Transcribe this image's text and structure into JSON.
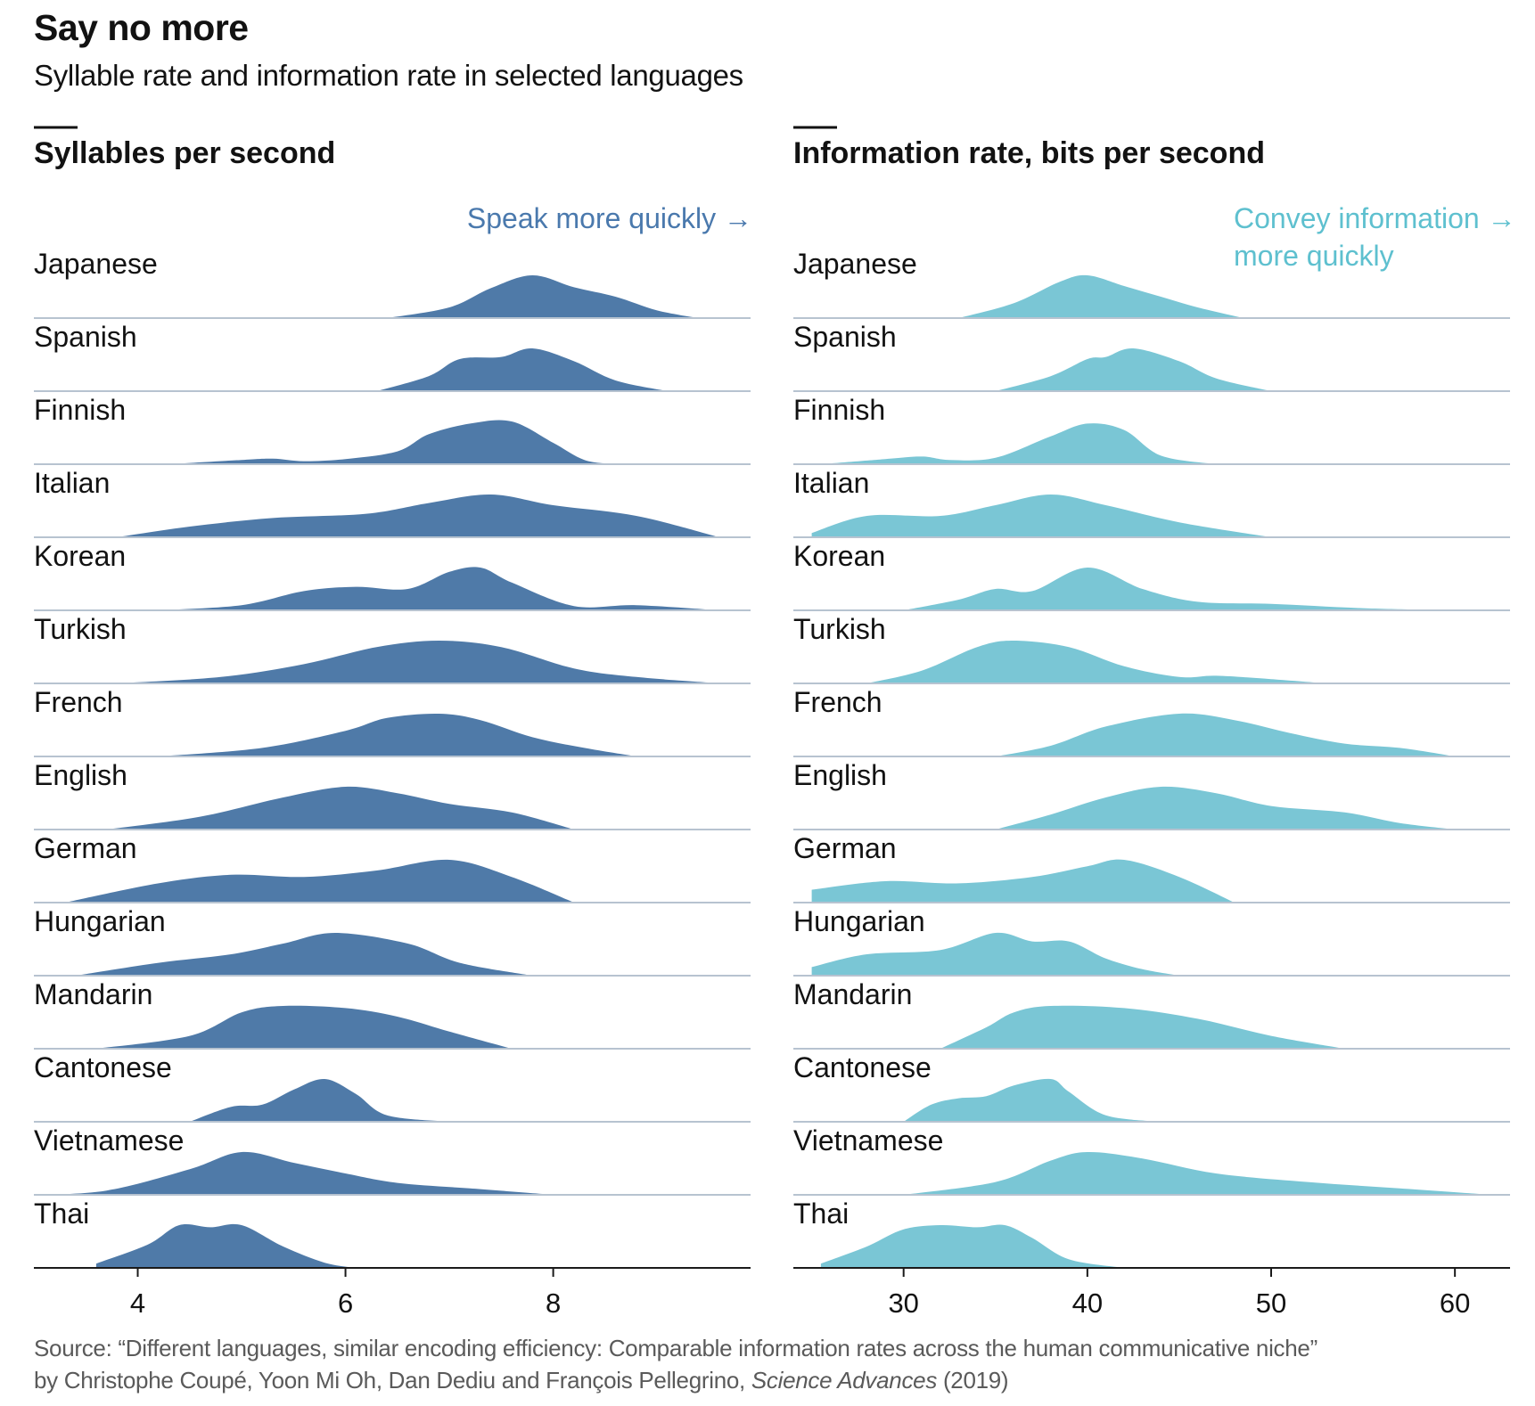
{
  "title": "Say no more",
  "subtitle": "Syllable rate and information rate in selected languages",
  "source": {
    "line1": "Source: “Different languages, similar encoding efficiency: Comparable information rates across the human communicative niche”",
    "line2_prefix": "by Christophe Coupé, Yoon Mi Oh, Dan Dediu and François Pellegrino, ",
    "journal": "Science Advances",
    "line2_suffix": " (2019)"
  },
  "colors": {
    "syllable_fill": "#4f7aa8",
    "info_fill": "#7ac6d5",
    "syllable_note": "#4a79ad",
    "info_note": "#5ec0cf",
    "baseline": "#b7c3d0",
    "axis": "#1a1a1a"
  },
  "languages": [
    "Japanese",
    "Spanish",
    "Finnish",
    "Italian",
    "Korean",
    "Turkish",
    "French",
    "English",
    "German",
    "Hungarian",
    "Mandarin",
    "Cantonese",
    "Vietnamese",
    "Thai"
  ],
  "chart_data": [
    {
      "type": "area",
      "subtype": "ridgeline density",
      "title": "Syllables per second",
      "annotation": "Speak more quickly →",
      "xlim": [
        3.0,
        9.9
      ],
      "xticks": [
        4,
        6,
        8
      ],
      "series": [
        {
          "name": "Japanese",
          "x": [
            6.4,
            7.0,
            7.4,
            7.8,
            8.2,
            8.6,
            9.0,
            9.4
          ],
          "density": [
            0.0,
            0.25,
            0.7,
            1.0,
            0.72,
            0.5,
            0.18,
            0.0
          ]
        },
        {
          "name": "Spanish",
          "x": [
            6.3,
            6.8,
            7.1,
            7.5,
            7.8,
            8.2,
            8.6,
            9.1
          ],
          "density": [
            0.0,
            0.35,
            0.75,
            0.8,
            1.0,
            0.7,
            0.25,
            0.0
          ]
        },
        {
          "name": "Finnish",
          "x": [
            4.3,
            5.0,
            5.3,
            5.6,
            6.0,
            6.5,
            6.8,
            7.2,
            7.6,
            8.0,
            8.3,
            8.6
          ],
          "density": [
            0.0,
            0.1,
            0.13,
            0.07,
            0.12,
            0.3,
            0.7,
            0.95,
            1.0,
            0.5,
            0.1,
            0.0
          ]
        },
        {
          "name": "Italian",
          "x": [
            3.8,
            4.5,
            5.3,
            6.2,
            6.8,
            7.4,
            8.0,
            8.8,
            9.6
          ],
          "density": [
            0.0,
            0.25,
            0.45,
            0.55,
            0.8,
            1.0,
            0.75,
            0.5,
            0.0
          ]
        },
        {
          "name": "Korean",
          "x": [
            4.2,
            5.0,
            5.6,
            6.1,
            6.6,
            7.0,
            7.3,
            7.6,
            8.2,
            8.8,
            9.6
          ],
          "density": [
            0.0,
            0.12,
            0.45,
            0.55,
            0.5,
            0.9,
            1.0,
            0.65,
            0.1,
            0.12,
            0.0
          ]
        },
        {
          "name": "Turkish",
          "x": [
            3.8,
            4.8,
            5.6,
            6.3,
            6.9,
            7.5,
            8.2,
            8.8,
            9.6
          ],
          "density": [
            0.0,
            0.15,
            0.45,
            0.85,
            1.0,
            0.85,
            0.35,
            0.15,
            0.0
          ]
        },
        {
          "name": "French",
          "x": [
            4.2,
            5.2,
            6.0,
            6.4,
            6.9,
            7.3,
            7.8,
            8.3,
            8.8
          ],
          "density": [
            0.0,
            0.2,
            0.6,
            0.9,
            1.0,
            0.85,
            0.45,
            0.2,
            0.0
          ]
        },
        {
          "name": "English",
          "x": [
            3.7,
            4.6,
            5.4,
            6.0,
            6.5,
            7.0,
            7.6,
            8.2
          ],
          "density": [
            0.0,
            0.3,
            0.75,
            1.0,
            0.85,
            0.6,
            0.4,
            0.0
          ]
        },
        {
          "name": "German",
          "x": [
            3.3,
            4.2,
            4.9,
            5.6,
            6.3,
            7.0,
            7.6,
            8.2
          ],
          "density": [
            0.0,
            0.45,
            0.65,
            0.6,
            0.75,
            1.0,
            0.6,
            0.0
          ]
        },
        {
          "name": "Hungarian",
          "x": [
            3.4,
            4.2,
            4.9,
            5.4,
            5.9,
            6.6,
            7.1,
            7.8
          ],
          "density": [
            0.0,
            0.3,
            0.5,
            0.75,
            1.0,
            0.75,
            0.3,
            0.0
          ]
        },
        {
          "name": "Mandarin",
          "x": [
            3.6,
            4.5,
            5.0,
            5.4,
            6.0,
            6.5,
            7.0,
            7.6
          ],
          "density": [
            0.0,
            0.3,
            0.85,
            1.0,
            0.95,
            0.75,
            0.4,
            0.0
          ]
        },
        {
          "name": "Cantonese",
          "x": [
            4.5,
            4.9,
            5.2,
            5.5,
            5.8,
            6.1,
            6.4,
            7.0
          ],
          "density": [
            0.0,
            0.35,
            0.4,
            0.75,
            1.0,
            0.65,
            0.15,
            0.0
          ]
        },
        {
          "name": "Vietnamese",
          "x": [
            3.0,
            3.7,
            4.5,
            5.0,
            5.5,
            6.0,
            6.5,
            7.2,
            8.0
          ],
          "density": [
            0.0,
            0.1,
            0.6,
            1.0,
            0.75,
            0.5,
            0.28,
            0.15,
            0.0
          ]
        },
        {
          "name": "Thai",
          "x": [
            3.6,
            4.1,
            4.4,
            4.7,
            5.0,
            5.4,
            5.8,
            6.1
          ],
          "density": [
            0.1,
            0.55,
            1.0,
            0.95,
            1.0,
            0.5,
            0.12,
            0.0
          ]
        }
      ]
    },
    {
      "type": "area",
      "subtype": "ridgeline density",
      "title": "Information rate, bits per second",
      "annotation": [
        "Convey information →",
        "more quickly"
      ],
      "xlim": [
        24.0,
        63.0
      ],
      "xticks": [
        30,
        40,
        50,
        60
      ],
      "series": [
        {
          "name": "Japanese",
          "x": [
            33.0,
            36.0,
            38.5,
            40.0,
            42.0,
            44.0,
            46.0,
            48.5
          ],
          "density": [
            0.0,
            0.35,
            0.85,
            1.0,
            0.75,
            0.5,
            0.25,
            0.0
          ]
        },
        {
          "name": "Spanish",
          "x": [
            35.0,
            38.0,
            40.0,
            41.0,
            42.5,
            45.0,
            47.0,
            50.0
          ],
          "density": [
            0.0,
            0.35,
            0.75,
            0.8,
            1.0,
            0.7,
            0.3,
            0.0
          ]
        },
        {
          "name": "Finnish",
          "x": [
            25.5,
            29.0,
            31.0,
            32.5,
            35.0,
            38.0,
            40.0,
            42.0,
            44.0,
            47.0
          ],
          "density": [
            0.0,
            0.12,
            0.18,
            0.1,
            0.15,
            0.65,
            0.95,
            0.8,
            0.2,
            0.0
          ]
        },
        {
          "name": "Italian",
          "x": [
            25.0,
            28.0,
            32.0,
            35.0,
            38.0,
            41.0,
            45.0,
            50.0
          ],
          "density": [
            0.1,
            0.5,
            0.5,
            0.75,
            1.0,
            0.75,
            0.35,
            0.0
          ]
        },
        {
          "name": "Korean",
          "x": [
            30.0,
            33.0,
            35.0,
            37.0,
            40.0,
            43.0,
            46.0,
            50.0,
            55.0,
            60.0
          ],
          "density": [
            0.0,
            0.25,
            0.5,
            0.45,
            1.0,
            0.5,
            0.2,
            0.15,
            0.05,
            0.0
          ]
        },
        {
          "name": "Turkish",
          "x": [
            28.0,
            31.0,
            34.0,
            36.0,
            39.0,
            42.0,
            45.0,
            47.0,
            50.0,
            53.0
          ],
          "density": [
            0.0,
            0.3,
            0.85,
            1.0,
            0.85,
            0.4,
            0.15,
            0.18,
            0.1,
            0.0
          ]
        },
        {
          "name": "French",
          "x": [
            35.0,
            38.0,
            41.0,
            45.0,
            48.0,
            51.0,
            54.0,
            57.0,
            60.0
          ],
          "density": [
            0.0,
            0.25,
            0.7,
            1.0,
            0.85,
            0.55,
            0.3,
            0.2,
            0.0
          ]
        },
        {
          "name": "English",
          "x": [
            35.0,
            38.0,
            41.0,
            44.0,
            47.0,
            50.0,
            54.0,
            57.0,
            60.0
          ],
          "density": [
            0.0,
            0.35,
            0.75,
            1.0,
            0.85,
            0.55,
            0.4,
            0.15,
            0.0
          ]
        },
        {
          "name": "German",
          "x": [
            25.0,
            29.0,
            33.0,
            37.0,
            40.0,
            42.0,
            45.0,
            48.0
          ],
          "density": [
            0.3,
            0.5,
            0.45,
            0.6,
            0.85,
            1.0,
            0.6,
            0.0
          ]
        },
        {
          "name": "Hungarian",
          "x": [
            25.0,
            28.0,
            32.0,
            35.0,
            37.0,
            39.0,
            41.0,
            43.0,
            45.0
          ],
          "density": [
            0.2,
            0.5,
            0.6,
            1.0,
            0.8,
            0.8,
            0.4,
            0.15,
            0.0
          ]
        },
        {
          "name": "Mandarin",
          "x": [
            32.0,
            34.5,
            36.0,
            38.0,
            42.0,
            46.0,
            50.0,
            54.0
          ],
          "density": [
            0.0,
            0.5,
            0.85,
            1.0,
            0.95,
            0.7,
            0.3,
            0.0
          ]
        },
        {
          "name": "Cantonese",
          "x": [
            30.0,
            31.5,
            33.0,
            34.5,
            36.0,
            38.0,
            39.0,
            41.0,
            44.0
          ],
          "density": [
            0.0,
            0.4,
            0.55,
            0.6,
            0.85,
            1.0,
            0.7,
            0.15,
            0.0
          ]
        },
        {
          "name": "Vietnamese",
          "x": [
            30.0,
            35.0,
            38.0,
            40.0,
            43.0,
            47.0,
            52.0,
            57.0,
            62.0
          ],
          "density": [
            0.0,
            0.3,
            0.8,
            1.0,
            0.85,
            0.5,
            0.3,
            0.15,
            0.0
          ]
        },
        {
          "name": "Thai",
          "x": [
            25.5,
            28.0,
            30.0,
            32.0,
            34.0,
            35.5,
            37.0,
            39.0,
            42.0
          ],
          "density": [
            0.1,
            0.5,
            0.9,
            1.0,
            0.95,
            1.0,
            0.7,
            0.2,
            0.0
          ]
        }
      ]
    }
  ]
}
